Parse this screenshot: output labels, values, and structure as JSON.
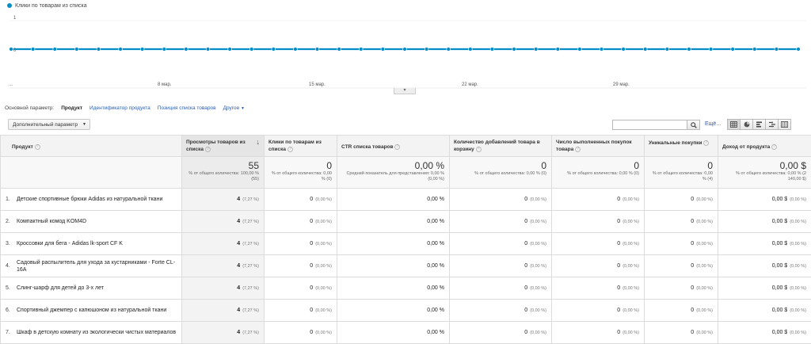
{
  "chart": {
    "legend": "Клики по товарам из списка",
    "y_top": "1",
    "y_bottom": "0",
    "x_start": "...",
    "x_labels": [
      "8 мар.",
      "15 мар.",
      "22 мар.",
      "29 мар."
    ]
  },
  "chart_data": {
    "type": "line",
    "series": [
      {
        "name": "Клики по товарам из списка",
        "values": [
          0,
          0,
          0,
          0,
          0,
          0,
          0,
          0,
          0,
          0,
          0,
          0,
          0,
          0,
          0,
          0,
          0,
          0,
          0,
          0,
          0,
          0,
          0,
          0,
          0,
          0,
          0,
          0,
          0,
          0,
          0,
          0,
          0,
          0,
          0,
          0,
          0
        ]
      }
    ],
    "ylim": [
      0,
      1
    ],
    "color": "#058dc7"
  },
  "dimension_bar": {
    "label": "Основной параметр:",
    "active": "Продукт",
    "links": [
      "Идентификатор продукта",
      "Позиция списка товаров",
      "Другое"
    ]
  },
  "toolbar": {
    "secondary_label": "Дополнительный параметр",
    "search_placeholder": "",
    "more_link": "Ещё..."
  },
  "table": {
    "headers": [
      "Продукт",
      "Просмотры товаров из списка",
      "Клики по товарам из списка",
      "CTR списка товаров",
      "Количество добавлений товара в корзину",
      "Число выполненных покупок товара",
      "Уникальные покупки",
      "Доход от продукта"
    ],
    "totals": [
      {
        "value": "55",
        "sub": "% от общего количества: 100,00 % (55)"
      },
      {
        "value": "0",
        "sub": "% от общего количества: 0,00 % (0)"
      },
      {
        "value": "0,00 %",
        "sub": "Средний показатель для представления: 0,00 % (0,00 %)"
      },
      {
        "value": "0",
        "sub": "% от общего количества: 0,00 % (0)"
      },
      {
        "value": "0",
        "sub": "% от общего количества: 0,00 % (0)"
      },
      {
        "value": "0",
        "sub": "% от общего количества: 0,00 % (4)"
      },
      {
        "value": "0,00 $",
        "sub": "% от общего количества: 0,00 % (2 140,00 $)"
      }
    ],
    "rows": [
      {
        "idx": "1.",
        "name": "Детские спортивные брюки Adidas из натуральной ткани",
        "views": "4",
        "views_pct": "(7,27 %)",
        "clicks": "0",
        "clicks_pct": "(0,00 %)",
        "ctr": "0,00 %",
        "adds": "0",
        "adds_pct": "(0,00 %)",
        "purchases": "0",
        "purchases_pct": "(0,00 %)",
        "unique": "0",
        "unique_pct": "(0,00 %)",
        "revenue": "0,00 $",
        "revenue_pct": "(0,00 %)"
      },
      {
        "idx": "2.",
        "name": "Компактный комод KOM4D",
        "views": "4",
        "views_pct": "(7,27 %)",
        "clicks": "0",
        "clicks_pct": "(0,00 %)",
        "ctr": "0,00 %",
        "adds": "0",
        "adds_pct": "(0,00 %)",
        "purchases": "0",
        "purchases_pct": "(0,00 %)",
        "unique": "0",
        "unique_pct": "(0,00 %)",
        "revenue": "0,00 $",
        "revenue_pct": "(0,00 %)"
      },
      {
        "idx": "3.",
        "name": "Кроссовки для бега - Adidas lk-sport CF K",
        "views": "4",
        "views_pct": "(7,27 %)",
        "clicks": "0",
        "clicks_pct": "(0,00 %)",
        "ctr": "0,00 %",
        "adds": "0",
        "adds_pct": "(0,00 %)",
        "purchases": "0",
        "purchases_pct": "(0,00 %)",
        "unique": "0",
        "unique_pct": "(0,00 %)",
        "revenue": "0,00 $",
        "revenue_pct": "(0,00 %)"
      },
      {
        "idx": "4.",
        "name": "Садовый распылитель для ухода за кустарниками - Forte CL-16A",
        "views": "4",
        "views_pct": "(7,27 %)",
        "clicks": "0",
        "clicks_pct": "(0,00 %)",
        "ctr": "0,00 %",
        "adds": "0",
        "adds_pct": "(0,00 %)",
        "purchases": "0",
        "purchases_pct": "(0,00 %)",
        "unique": "0",
        "unique_pct": "(0,00 %)",
        "revenue": "0,00 $",
        "revenue_pct": "(0,00 %)"
      },
      {
        "idx": "5.",
        "name": "Слинг-шарф для детей до 3-х лет",
        "views": "4",
        "views_pct": "(7,27 %)",
        "clicks": "0",
        "clicks_pct": "(0,00 %)",
        "ctr": "0,00 %",
        "adds": "0",
        "adds_pct": "(0,00 %)",
        "purchases": "0",
        "purchases_pct": "(0,00 %)",
        "unique": "0",
        "unique_pct": "(0,00 %)",
        "revenue": "0,00 $",
        "revenue_pct": "(0,00 %)"
      },
      {
        "idx": "6.",
        "name": "Спортивный джемпер с капюшоном из натуральной ткани",
        "views": "4",
        "views_pct": "(7,27 %)",
        "clicks": "0",
        "clicks_pct": "(0,00 %)",
        "ctr": "0,00 %",
        "adds": "0",
        "adds_pct": "(0,00 %)",
        "purchases": "0",
        "purchases_pct": "(0,00 %)",
        "unique": "0",
        "unique_pct": "(0,00 %)",
        "revenue": "0,00 $",
        "revenue_pct": "(0,00 %)"
      },
      {
        "idx": "7.",
        "name": "Шкаф в детскую комнату из экологически чистых материалов",
        "views": "4",
        "views_pct": "(7,27 %)",
        "clicks": "0",
        "clicks_pct": "(0,00 %)",
        "ctr": "0,00 %",
        "adds": "0",
        "adds_pct": "(0,00 %)",
        "purchases": "0",
        "purchases_pct": "(0,00 %)",
        "unique": "0",
        "unique_pct": "(0,00 %)",
        "revenue": "0,00 $",
        "revenue_pct": "(0,00 %)"
      }
    ]
  }
}
